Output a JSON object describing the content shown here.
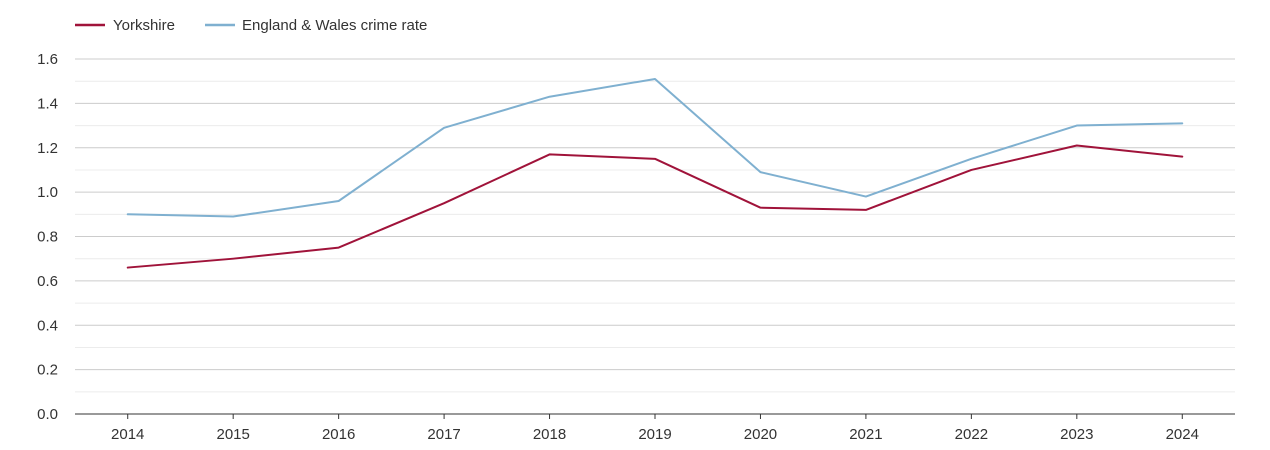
{
  "chart_data": {
    "type": "line",
    "title": "",
    "xlabel": "",
    "ylabel": "",
    "categories": [
      "2014",
      "2015",
      "2016",
      "2017",
      "2018",
      "2019",
      "2020",
      "2021",
      "2022",
      "2023",
      "2024"
    ],
    "ylim": [
      0,
      1.6
    ],
    "yticks": [
      "0.0",
      "0.2",
      "0.4",
      "0.6",
      "0.8",
      "1.0",
      "1.2",
      "1.4",
      "1.6"
    ],
    "grid": true,
    "legend_position": "top-left",
    "series": [
      {
        "name": "Yorkshire",
        "color": "#a0133a",
        "values": [
          0.66,
          0.7,
          0.75,
          0.95,
          1.17,
          1.15,
          0.93,
          0.92,
          1.1,
          1.21,
          1.16
        ]
      },
      {
        "name": "England & Wales crime rate",
        "color": "#7fb0d0",
        "values": [
          0.9,
          0.89,
          0.96,
          1.29,
          1.43,
          1.51,
          1.09,
          0.98,
          1.15,
          1.3,
          1.31
        ]
      }
    ]
  }
}
